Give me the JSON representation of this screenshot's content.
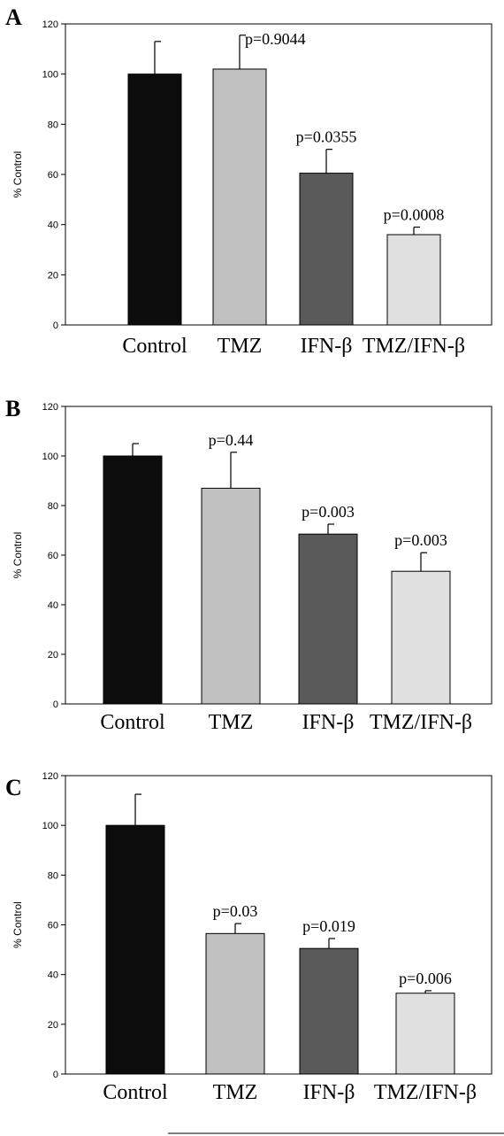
{
  "chart_data": [
    {
      "type": "bar",
      "panel": "A",
      "ylabel": "% Control",
      "ylim": [
        0,
        120
      ],
      "yticks": [
        0,
        20,
        40,
        60,
        80,
        100,
        120
      ],
      "categories": [
        "Control",
        "TMZ",
        "IFN-β",
        "TMZ/IFN-β"
      ],
      "values": [
        100,
        102,
        60.5,
        36
      ],
      "errors": [
        13,
        13.5,
        9.5,
        3
      ],
      "p_labels": [
        "",
        "p=0.9044",
        "p=0.0355",
        "p=0.0008"
      ],
      "colors": [
        "#0c0c0c",
        "#c0c0c0",
        "#5a5a5a",
        "#e0e0e0"
      ]
    },
    {
      "type": "bar",
      "panel": "B",
      "ylabel": "% Control",
      "ylim": [
        0,
        120
      ],
      "yticks": [
        0,
        20,
        40,
        60,
        80,
        100,
        120
      ],
      "categories": [
        "Control",
        "TMZ",
        "IFN-β",
        "TMZ/IFN-β"
      ],
      "values": [
        100,
        87,
        68.5,
        53.5
      ],
      "errors": [
        5,
        14.5,
        4,
        7.5
      ],
      "p_labels": [
        "",
        "p=0.44",
        "p=0.003",
        "p=0.003"
      ],
      "colors": [
        "#0c0c0c",
        "#c0c0c0",
        "#5a5a5a",
        "#e0e0e0"
      ]
    },
    {
      "type": "bar",
      "panel": "C",
      "ylabel": "% Control",
      "ylim": [
        0,
        120
      ],
      "yticks": [
        0,
        20,
        40,
        60,
        80,
        100,
        120
      ],
      "categories": [
        "Control",
        "TMZ",
        "IFN-β",
        "TMZ/IFN-β"
      ],
      "values": [
        100,
        56.5,
        50.5,
        32.5
      ],
      "errors": [
        12.5,
        4,
        4,
        1
      ],
      "p_labels": [
        "",
        "p=0.03",
        "p=0.019",
        "p=0.006"
      ],
      "colors": [
        "#0c0c0c",
        "#c0c0c0",
        "#5a5a5a",
        "#e0e0e0"
      ]
    }
  ]
}
